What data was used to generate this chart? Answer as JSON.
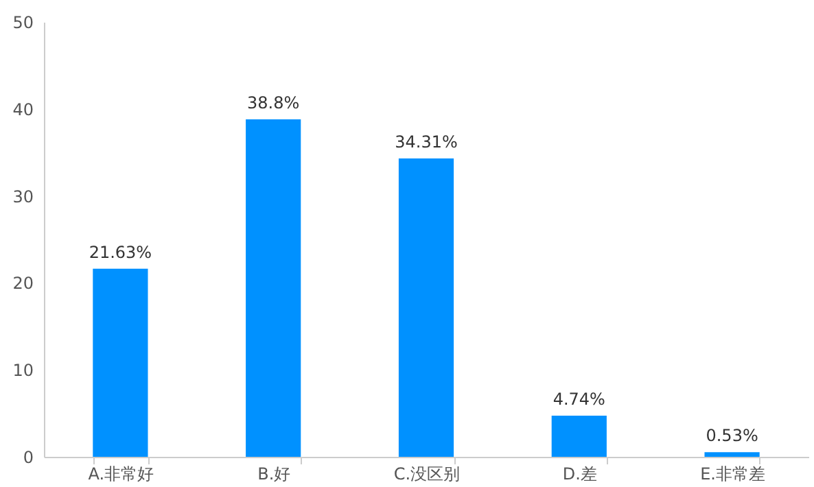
{
  "chart_data": {
    "type": "bar",
    "categories": [
      "A.非常好",
      "B.好",
      "C.没区别",
      "D.差",
      "E.非常差"
    ],
    "values": [
      21.63,
      38.8,
      34.31,
      4.74,
      0.53
    ],
    "value_labels": [
      "21.63%",
      "38.8%",
      "34.31%",
      "4.74%",
      "0.53%"
    ],
    "color": "#0091ff",
    "ylim": [
      0,
      50
    ],
    "yticks": [
      0,
      10,
      20,
      30,
      40,
      50
    ],
    "grid": false
  }
}
